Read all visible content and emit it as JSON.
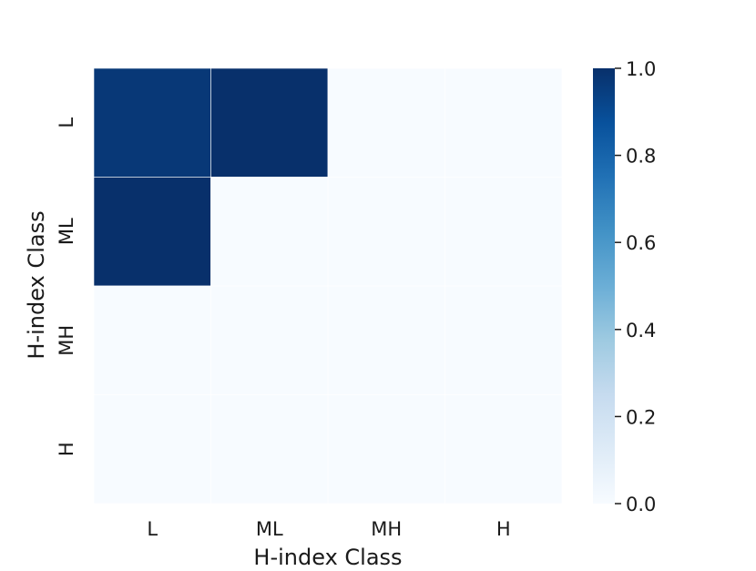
{
  "chart_data": {
    "type": "heatmap",
    "title": "",
    "xlabel": "H-index Class",
    "ylabel": "H-index Class",
    "x_categories": [
      "L",
      "ML",
      "MH",
      "H"
    ],
    "y_categories": [
      "L",
      "ML",
      "MH",
      "H"
    ],
    "values": [
      [
        0.97,
        1.0,
        0.0,
        0.0
      ],
      [
        1.0,
        0.0,
        0.0,
        0.0
      ],
      [
        0.0,
        0.0,
        0.0,
        0.0
      ],
      [
        0.0,
        0.0,
        0.0,
        0.0
      ]
    ],
    "colormap": "Blues",
    "vmin": 0.0,
    "vmax": 1.0,
    "colorbar_ticks": [
      "0.0",
      "0.2",
      "0.4",
      "0.6",
      "0.8",
      "1.0"
    ],
    "grid": false,
    "cell_border_color": "#ffffff"
  }
}
